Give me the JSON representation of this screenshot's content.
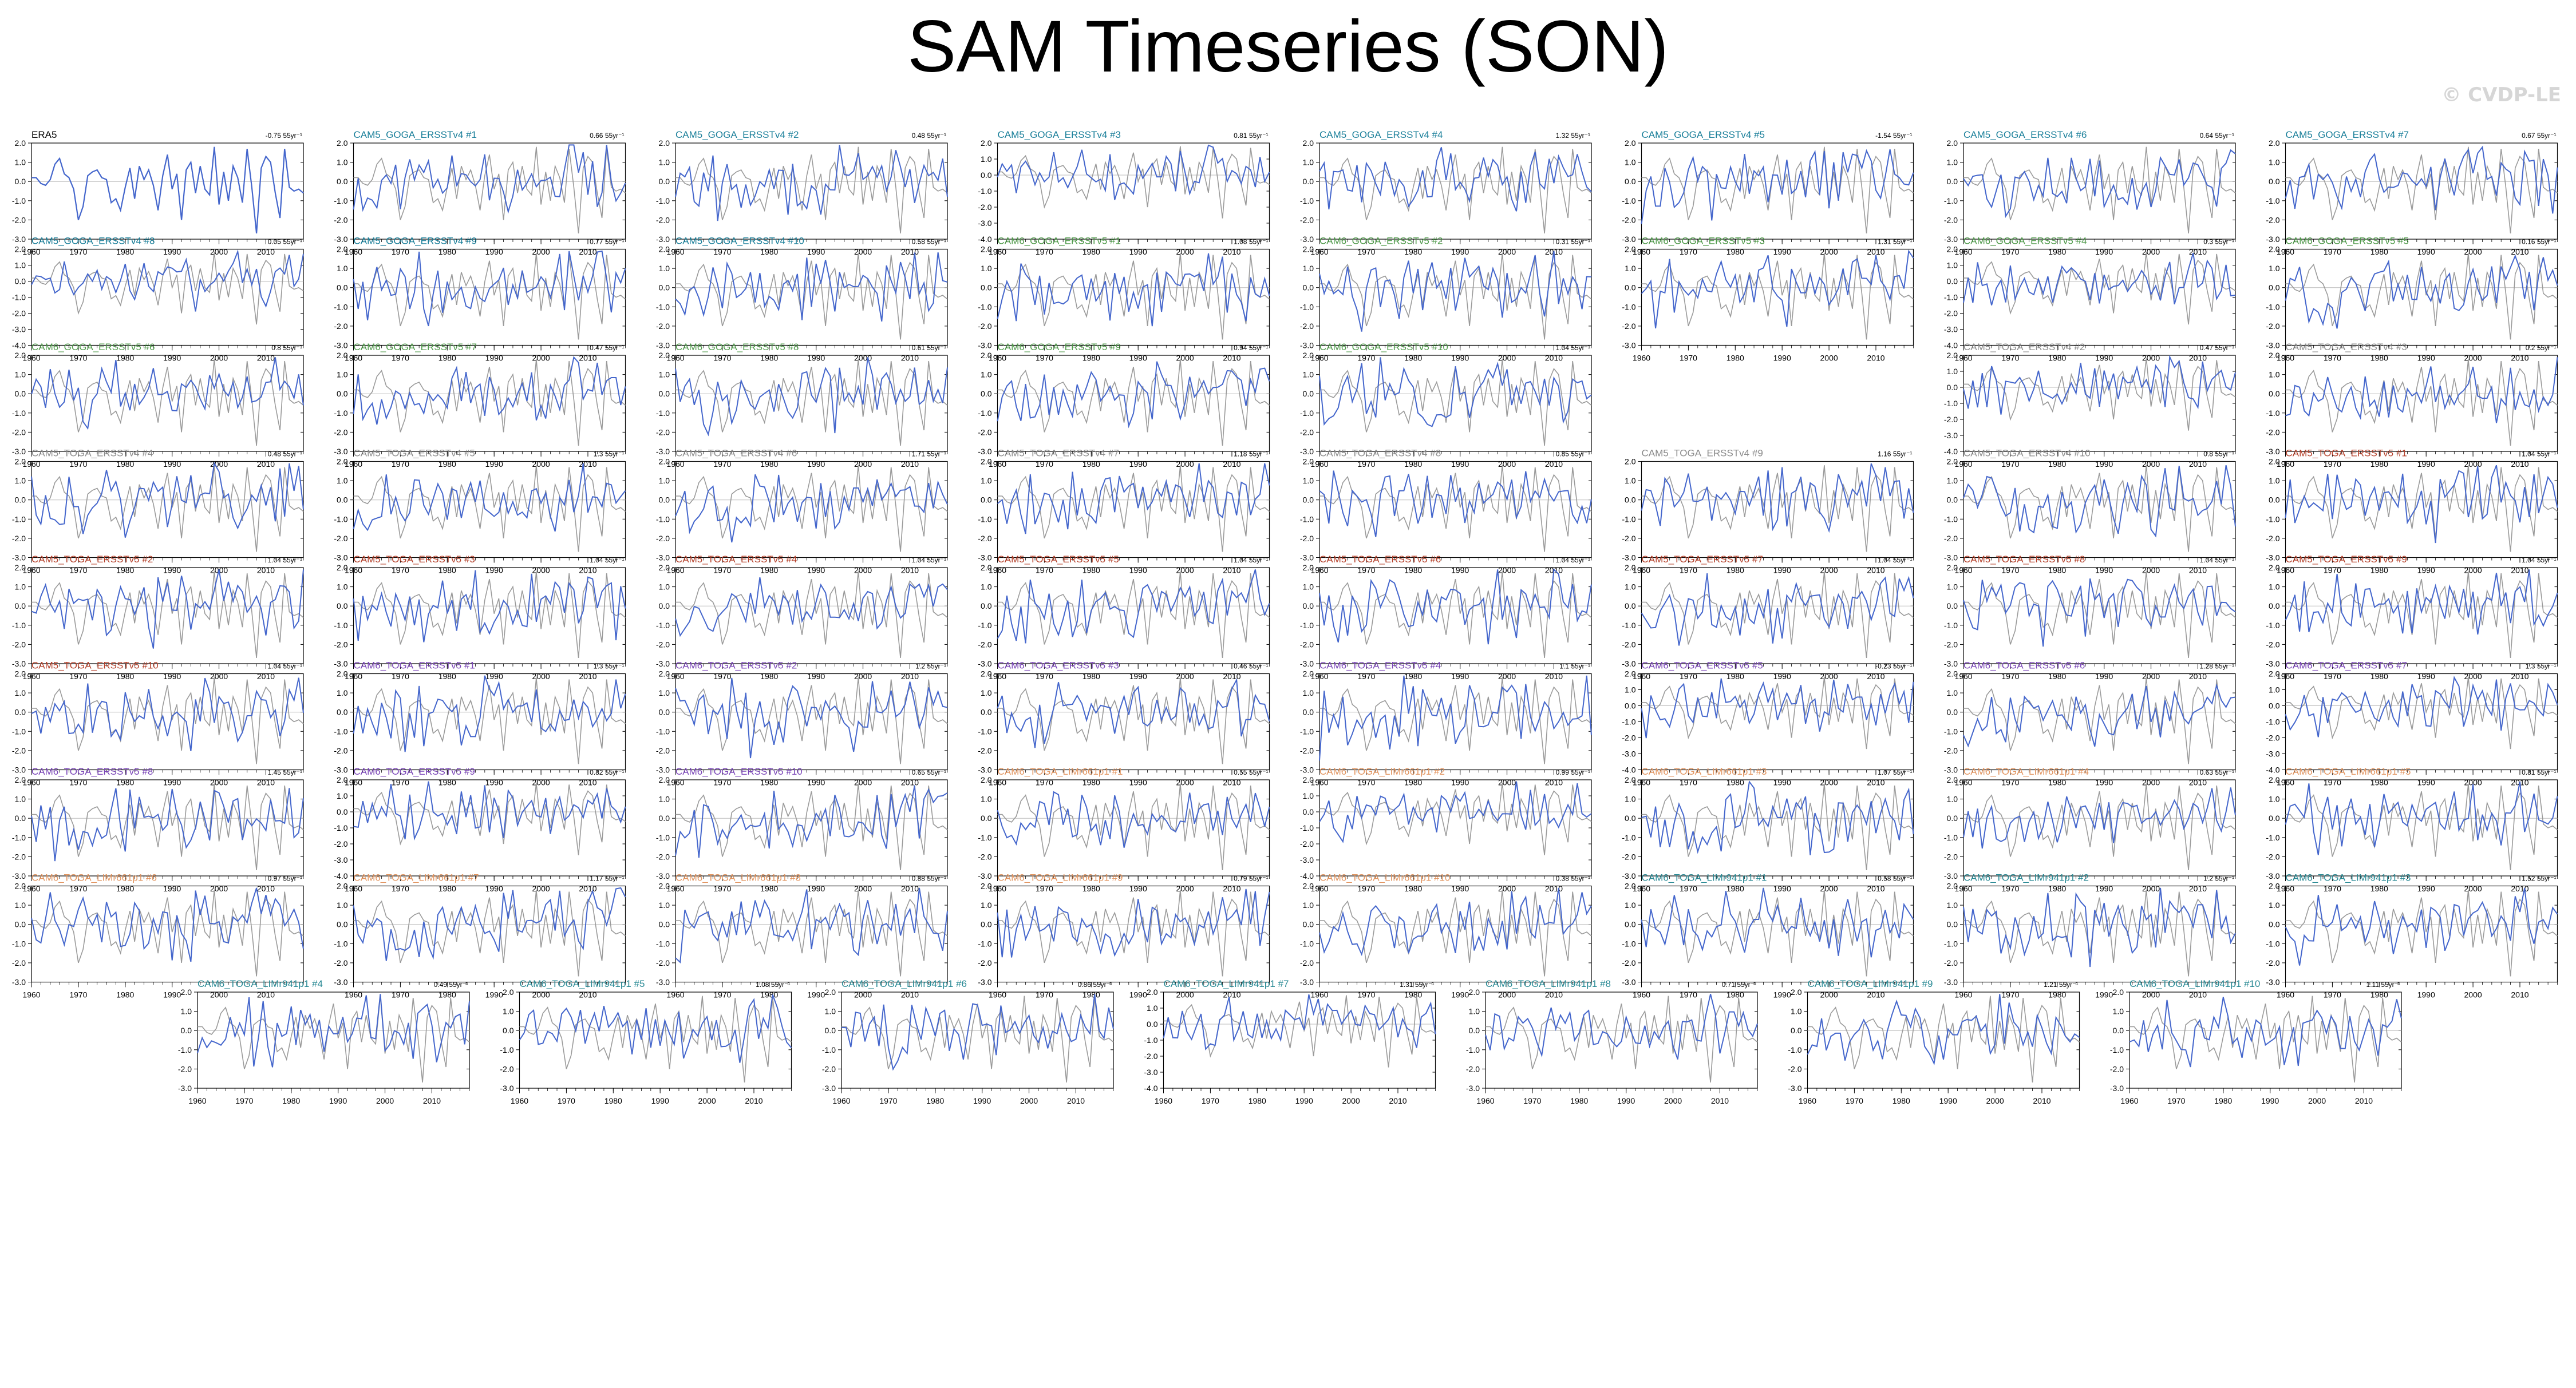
{
  "title": "SAM Timeseries (SON)",
  "watermark": "© CVDP-LE",
  "colors": {
    "obs": "#000000",
    "model": "#4466cc",
    "obs_overlay": "#9a9a9a",
    "zero_line": "#bbbbbb",
    "CAM5_GOGA_ERSSTv4": "#1a7f9a",
    "CAM6_GOGA_ERSSTv5": "#4f9a4a",
    "CAM5_TOGA_ERSSTv4": "#8a8a8a",
    "CAM5_TOGA_ERSSTv5": "#b5402a",
    "CAM6_TOGA_ERSSTv5": "#7a45b8",
    "CAM6_TOGA_LIMr661p1": "#e29560",
    "CAM6_TOGA_LIMr941p1": "#2a8a95"
  },
  "chart_data": {
    "type": "line",
    "x": [
      1960,
      1961,
      1962,
      1963,
      1964,
      1965,
      1966,
      1967,
      1968,
      1969,
      1970,
      1971,
      1972,
      1973,
      1974,
      1975,
      1976,
      1977,
      1978,
      1979,
      1980,
      1981,
      1982,
      1983,
      1984,
      1985,
      1986,
      1987,
      1988,
      1989,
      1990,
      1991,
      1992,
      1993,
      1994,
      1995,
      1996,
      1997,
      1998,
      1999,
      2000,
      2001,
      2002,
      2003,
      2004,
      2005,
      2006,
      2007,
      2008,
      2009,
      2010,
      2011,
      2012,
      2013,
      2014,
      2015,
      2016,
      2017,
      2018
    ],
    "xlim": [
      1960,
      2018
    ],
    "xticks": [
      1960,
      1970,
      1980,
      1990,
      2000,
      2010
    ],
    "observed": {
      "name": "ERA5",
      "trend": "-0.75 55yr⁻¹",
      "ylim": [
        -3,
        2
      ],
      "yticks": [
        "2.0",
        "1.0",
        "0.0",
        "-1.0",
        "-2.0",
        "-3.0"
      ],
      "values": [
        0.2,
        0.2,
        -0.1,
        -0.2,
        0.1,
        0.9,
        1.2,
        0.4,
        0.2,
        -0.4,
        -2.0,
        -1.3,
        0.3,
        0.5,
        0.6,
        0.2,
        0.1,
        -1.1,
        -0.9,
        -1.5,
        -0.3,
        0.7,
        -0.9,
        0.8,
        0.1,
        0.6,
        -0.2,
        -1.5,
        0.3,
        1.4,
        -0.4,
        0.4,
        -2.0,
        0.6,
        1.0,
        -0.6,
        0.8,
        -0.4,
        -0.7,
        1.8,
        -1.2,
        0.5,
        -1.0,
        0.8,
        0.2,
        -1.1,
        1.7,
        -0.3,
        -2.7,
        0.7,
        1.3,
        1.0,
        -0.6,
        -1.9,
        1.7,
        -0.3,
        -0.5,
        -0.4,
        -0.6
      ]
    },
    "panels": [
      {
        "title": "CAM5_GOGA_ERSSTv4 #1",
        "group": "CAM5_GOGA_ERSSTv4",
        "trend": "0.66 55yr⁻¹",
        "ylim": [
          -3,
          2
        ]
      },
      {
        "title": "CAM5_GOGA_ERSSTv4 #2",
        "group": "CAM5_GOGA_ERSSTv4",
        "trend": "0.48 55yr⁻¹",
        "ylim": [
          -3,
          2
        ]
      },
      {
        "title": "CAM5_GOGA_ERSSTv4 #3",
        "group": "CAM5_GOGA_ERSSTv4",
        "trend": "0.81 55yr⁻¹",
        "ylim": [
          -4,
          2
        ]
      },
      {
        "title": "CAM5_GOGA_ERSSTv4 #4",
        "group": "CAM5_GOGA_ERSSTv4",
        "trend": "1.32 55yr⁻¹",
        "ylim": [
          -3,
          2
        ]
      },
      {
        "title": "CAM5_GOGA_ERSSTv4 #5",
        "group": "CAM5_GOGA_ERSSTv4",
        "trend": "-1.54 55yr⁻¹",
        "ylim": [
          -3,
          2
        ]
      },
      {
        "title": "CAM5_GOGA_ERSSTv4 #6",
        "group": "CAM5_GOGA_ERSSTv4",
        "trend": "0.64 55yr⁻¹",
        "ylim": [
          -3,
          2
        ]
      },
      {
        "title": "CAM5_GOGA_ERSSTv4 #7",
        "group": "CAM5_GOGA_ERSSTv4",
        "trend": "0.67 55yr⁻¹",
        "ylim": [
          -3,
          2
        ]
      },
      {
        "title": "CAM5_GOGA_ERSSTv4 #8",
        "group": "CAM5_GOGA_ERSSTv4",
        "trend": "0.05 55yr⁻¹",
        "ylim": [
          -4,
          2
        ]
      },
      {
        "title": "CAM5_GOGA_ERSSTv4 #9",
        "group": "CAM5_GOGA_ERSSTv4",
        "trend": "0.77 55yr⁻¹",
        "ylim": [
          -3,
          2
        ]
      },
      {
        "title": "CAM5_GOGA_ERSSTv4 #10",
        "group": "CAM5_GOGA_ERSSTv4",
        "trend": "0.58 55yr⁻¹",
        "ylim": [
          -3,
          2
        ]
      },
      {
        "title": "CAM6_GOGA_ERSSTv5 #1",
        "group": "CAM6_GOGA_ERSSTv5",
        "trend": "1.08 55yr⁻¹",
        "ylim": [
          -3,
          2
        ]
      },
      {
        "title": "CAM6_GOGA_ERSSTv5 #2",
        "group": "CAM6_GOGA_ERSSTv5",
        "trend": "0.31 55yr⁻¹",
        "ylim": [
          -3,
          2
        ]
      },
      {
        "title": "CAM6_GOGA_ERSSTv5 #3",
        "group": "CAM6_GOGA_ERSSTv5",
        "trend": "1.31 55yr⁻¹",
        "ylim": [
          -3,
          2
        ]
      },
      {
        "title": "CAM6_GOGA_ERSSTv5 #4",
        "group": "CAM6_GOGA_ERSSTv5",
        "trend": "0.3 55yr⁻¹",
        "ylim": [
          -4,
          2
        ]
      },
      {
        "title": "CAM6_GOGA_ERSSTv5 #5",
        "group": "CAM6_GOGA_ERSSTv5",
        "trend": "0.16 55yr⁻¹",
        "ylim": [
          -3,
          2
        ]
      },
      {
        "title": "CAM6_GOGA_ERSSTv5 #6",
        "group": "CAM6_GOGA_ERSSTv5",
        "trend": "0.8 55yr⁻¹",
        "ylim": [
          -3,
          2
        ]
      },
      {
        "title": "CAM6_GOGA_ERSSTv5 #7",
        "group": "CAM6_GOGA_ERSSTv5",
        "trend": "0.47 55yr⁻¹",
        "ylim": [
          -3,
          2
        ]
      },
      {
        "title": "CAM6_GOGA_ERSSTv5 #8",
        "group": "CAM6_GOGA_ERSSTv5",
        "trend": "0.61 55yr⁻¹",
        "ylim": [
          -3,
          2
        ]
      },
      {
        "title": "CAM6_GOGA_ERSSTv5 #9",
        "group": "CAM6_GOGA_ERSSTv5",
        "trend": "0.94 55yr⁻¹",
        "ylim": [
          -3,
          2
        ]
      },
      {
        "title": "CAM6_GOGA_ERSSTv5 #10",
        "group": "CAM6_GOGA_ERSSTv5",
        "trend": "1.04 55yr⁻¹",
        "ylim": [
          -3,
          2
        ]
      },
      {
        "title": "CAM5_TOGA_ERSSTv4 #2",
        "group": "CAM5_TOGA_ERSSTv4",
        "trend": "0.47 55yr⁻¹",
        "ylim": [
          -4,
          2
        ]
      },
      {
        "title": "CAM5_TOGA_ERSSTv4 #3",
        "group": "CAM5_TOGA_ERSSTv4",
        "trend": "0.2 55yr⁻¹",
        "ylim": [
          -3,
          2
        ]
      },
      {
        "title": "CAM5_TOGA_ERSSTv4 #4",
        "group": "CAM5_TOGA_ERSSTv4",
        "trend": "0.48 55yr⁻¹",
        "ylim": [
          -3,
          2
        ]
      },
      {
        "title": "CAM5_TOGA_ERSSTv4 #5",
        "group": "CAM5_TOGA_ERSSTv4",
        "trend": "1.3 55yr⁻¹",
        "ylim": [
          -3,
          2
        ]
      },
      {
        "title": "CAM5_TOGA_ERSSTv4 #6",
        "group": "CAM5_TOGA_ERSSTv4",
        "trend": "1.71 55yr⁻¹",
        "ylim": [
          -3,
          2
        ]
      },
      {
        "title": "CAM5_TOGA_ERSSTv4 #7",
        "group": "CAM5_TOGA_ERSSTv4",
        "trend": "1.18 55yr⁻¹",
        "ylim": [
          -3,
          2
        ]
      },
      {
        "title": "CAM5_TOGA_ERSSTv4 #8",
        "group": "CAM5_TOGA_ERSSTv4",
        "trend": "0.85 55yr⁻¹",
        "ylim": [
          -3,
          2
        ]
      },
      {
        "title": "CAM5_TOGA_ERSSTv4 #9",
        "group": "CAM5_TOGA_ERSSTv4",
        "trend": "1.16 55yr⁻¹",
        "ylim": [
          -3,
          2
        ]
      },
      {
        "title": "CAM5_TOGA_ERSSTv4 #10",
        "group": "CAM5_TOGA_ERSSTv4",
        "trend": "0.8 55yr⁻¹",
        "ylim": [
          -3,
          2
        ]
      },
      {
        "title": "CAM5_TOGA_ERSSTv5 #1",
        "group": "CAM5_TOGA_ERSSTv5",
        "trend": "1.04 55yr⁻¹",
        "ylim": [
          -3,
          2
        ]
      },
      {
        "title": "CAM5_TOGA_ERSSTv5 #2",
        "group": "CAM5_TOGA_ERSSTv5",
        "trend": "1.04 55yr⁻¹",
        "ylim": [
          -3,
          2
        ]
      },
      {
        "title": "CAM5_TOGA_ERSSTv5 #3",
        "group": "CAM5_TOGA_ERSSTv5",
        "trend": "1.04 55yr⁻¹",
        "ylim": [
          -3,
          2
        ]
      },
      {
        "title": "CAM5_TOGA_ERSSTv5 #4",
        "group": "CAM5_TOGA_ERSSTv5",
        "trend": "1.04 55yr⁻¹",
        "ylim": [
          -3,
          2
        ]
      },
      {
        "title": "CAM5_TOGA_ERSSTv5 #5",
        "group": "CAM5_TOGA_ERSSTv5",
        "trend": "1.04 55yr⁻¹",
        "ylim": [
          -3,
          2
        ]
      },
      {
        "title": "CAM5_TOGA_ERSSTv5 #6",
        "group": "CAM5_TOGA_ERSSTv5",
        "trend": "1.04 55yr⁻¹",
        "ylim": [
          -3,
          2
        ]
      },
      {
        "title": "CAM5_TOGA_ERSSTv5 #7",
        "group": "CAM5_TOGA_ERSSTv5",
        "trend": "1.04 55yr⁻¹",
        "ylim": [
          -3,
          2
        ]
      },
      {
        "title": "CAM5_TOGA_ERSSTv5 #8",
        "group": "CAM5_TOGA_ERSSTv5",
        "trend": "1.04 55yr⁻¹",
        "ylim": [
          -3,
          2
        ]
      },
      {
        "title": "CAM5_TOGA_ERSSTv5 #9",
        "group": "CAM5_TOGA_ERSSTv5",
        "trend": "1.04 55yr⁻¹",
        "ylim": [
          -3,
          2
        ]
      },
      {
        "title": "CAM5_TOGA_ERSSTv5 #10",
        "group": "CAM5_TOGA_ERSSTv5",
        "trend": "1.04 55yr⁻¹",
        "ylim": [
          -3,
          2
        ]
      },
      {
        "title": "CAM6_TOGA_ERSSTv5 #1",
        "group": "CAM6_TOGA_ERSSTv5",
        "trend": "1.3 55yr⁻¹",
        "ylim": [
          -3,
          2
        ]
      },
      {
        "title": "CAM6_TOGA_ERSSTv5 #2",
        "group": "CAM6_TOGA_ERSSTv5",
        "trend": "1.2 55yr⁻¹",
        "ylim": [
          -3,
          2
        ]
      },
      {
        "title": "CAM6_TOGA_ERSSTv5 #3",
        "group": "CAM6_TOGA_ERSSTv5",
        "trend": "0.46 55yr⁻¹",
        "ylim": [
          -3,
          2
        ]
      },
      {
        "title": "CAM6_TOGA_ERSSTv5 #4",
        "group": "CAM6_TOGA_ERSSTv5",
        "trend": "1.1 55yr⁻¹",
        "ylim": [
          -3,
          2
        ]
      },
      {
        "title": "CAM6_TOGA_ERSSTv5 #5",
        "group": "CAM6_TOGA_ERSSTv5",
        "trend": "-0.23 55yr⁻¹",
        "ylim": [
          -4,
          2
        ]
      },
      {
        "title": "CAM6_TOGA_ERSSTv5 #6",
        "group": "CAM6_TOGA_ERSSTv5",
        "trend": "1.28 55yr⁻¹",
        "ylim": [
          -3,
          2
        ]
      },
      {
        "title": "CAM6_TOGA_ERSSTv5 #7",
        "group": "CAM6_TOGA_ERSSTv5",
        "trend": "1.3 55yr⁻¹",
        "ylim": [
          -4,
          2
        ]
      },
      {
        "title": "CAM6_TOGA_ERSSTv5 #8",
        "group": "CAM6_TOGA_ERSSTv5",
        "trend": "1.45 55yr⁻¹",
        "ylim": [
          -3,
          2
        ]
      },
      {
        "title": "CAM6_TOGA_ERSSTv5 #9",
        "group": "CAM6_TOGA_ERSSTv5",
        "trend": "0.82 55yr⁻¹",
        "ylim": [
          -4,
          2
        ]
      },
      {
        "title": "CAM6_TOGA_ERSSTv5 #10",
        "group": "CAM6_TOGA_ERSSTv5",
        "trend": "0.65 55yr⁻¹",
        "ylim": [
          -3,
          2
        ]
      },
      {
        "title": "CAM6_TOGA_LIMr661p1 #1",
        "group": "CAM6_TOGA_LIMr661p1",
        "trend": "0.55 55yr⁻¹",
        "ylim": [
          -3,
          2
        ]
      },
      {
        "title": "CAM6_TOGA_LIMr661p1 #2",
        "group": "CAM6_TOGA_LIMr661p1",
        "trend": "0.99 55yr⁻¹",
        "ylim": [
          -4,
          2
        ]
      },
      {
        "title": "CAM6_TOGA_LIMr661p1 #3",
        "group": "CAM6_TOGA_LIMr661p1",
        "trend": "1.07 55yr⁻¹",
        "ylim": [
          -3,
          2
        ]
      },
      {
        "title": "CAM6_TOGA_LIMr661p1 #4",
        "group": "CAM6_TOGA_LIMr661p1",
        "trend": "0.63 55yr⁻¹",
        "ylim": [
          -3,
          2
        ]
      },
      {
        "title": "CAM6_TOGA_LIMr661p1 #5",
        "group": "CAM6_TOGA_LIMr661p1",
        "trend": "0.81 55yr⁻¹",
        "ylim": [
          -3,
          2
        ]
      },
      {
        "title": "CAM6_TOGA_LIMr661p1 #6",
        "group": "CAM6_TOGA_LIMr661p1",
        "trend": "0.97 55yr⁻¹",
        "ylim": [
          -3,
          2
        ]
      },
      {
        "title": "CAM6_TOGA_LIMr661p1 #7",
        "group": "CAM6_TOGA_LIMr661p1",
        "trend": "1.17 55yr⁻¹",
        "ylim": [
          -3,
          2
        ]
      },
      {
        "title": "CAM6_TOGA_LIMr661p1 #8",
        "group": "CAM6_TOGA_LIMr661p1",
        "trend": "0.88 55yr⁻¹",
        "ylim": [
          -3,
          2
        ]
      },
      {
        "title": "CAM6_TOGA_LIMr661p1 #9",
        "group": "CAM6_TOGA_LIMr661p1",
        "trend": "0.79 55yr⁻¹",
        "ylim": [
          -3,
          2
        ]
      },
      {
        "title": "CAM6_TOGA_LIMr661p1 #10",
        "group": "CAM6_TOGA_LIMr661p1",
        "trend": "0.38 55yr⁻¹",
        "ylim": [
          -3,
          2
        ]
      },
      {
        "title": "CAM6_TOGA_LIMr941p1 #1",
        "group": "CAM6_TOGA_LIMr941p1",
        "trend": "0.58 55yr⁻¹",
        "ylim": [
          -3,
          2
        ]
      },
      {
        "title": "CAM6_TOGA_LIMr941p1 #2",
        "group": "CAM6_TOGA_LIMr941p1",
        "trend": "1.2 55yr⁻¹",
        "ylim": [
          -3,
          2
        ]
      },
      {
        "title": "CAM6_TOGA_LIMr941p1 #3",
        "group": "CAM6_TOGA_LIMr941p1",
        "trend": "1.52 55yr⁻¹",
        "ylim": [
          -3,
          2
        ]
      },
      {
        "title": "CAM6_TOGA_LIMr941p1 #4",
        "group": "CAM6_TOGA_LIMr941p1",
        "trend": "0.49 55yr⁻¹",
        "ylim": [
          -3,
          2
        ]
      },
      {
        "title": "CAM6_TOGA_LIMr941p1 #5",
        "group": "CAM6_TOGA_LIMr941p1",
        "trend": "1.08 55yr⁻¹",
        "ylim": [
          -3,
          2
        ]
      },
      {
        "title": "CAM6_TOGA_LIMr941p1 #6",
        "group": "CAM6_TOGA_LIMr941p1",
        "trend": "0.86 55yr⁻¹",
        "ylim": [
          -3,
          2
        ]
      },
      {
        "title": "CAM6_TOGA_LIMr941p1 #7",
        "group": "CAM6_TOGA_LIMr941p1",
        "trend": "1.31 55yr⁻¹",
        "ylim": [
          -4,
          2
        ]
      },
      {
        "title": "CAM6_TOGA_LIMr941p1 #8",
        "group": "CAM6_TOGA_LIMr941p1",
        "trend": "0.71 55yr⁻¹",
        "ylim": [
          -3,
          2
        ]
      },
      {
        "title": "CAM6_TOGA_LIMr941p1 #9",
        "group": "CAM6_TOGA_LIMr941p1",
        "trend": "1.21 55yr⁻¹",
        "ylim": [
          -3,
          2
        ]
      },
      {
        "title": "CAM6_TOGA_LIMr941p1 #10",
        "group": "CAM6_TOGA_LIMr941p1",
        "trend": "1.11 55yr⁻¹",
        "ylim": [
          -3,
          2
        ]
      }
    ]
  }
}
